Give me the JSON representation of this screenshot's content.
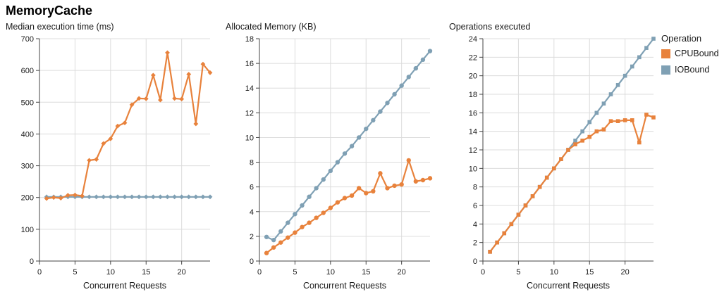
{
  "page": {
    "title": "MemoryCache"
  },
  "legend": {
    "title": "Operation",
    "items": [
      {
        "label": "CPUBound",
        "color": "#E8823C"
      },
      {
        "label": "IOBound",
        "color": "#7FA0B4"
      }
    ]
  },
  "style": {
    "grid_color": "#dcdcdc",
    "axis_color": "#444444",
    "text_color": "#1a1a1a",
    "series_colors": {
      "CPUBound": "#E8823C",
      "IOBound": "#7FA0B4"
    }
  },
  "chart_data": [
    {
      "type": "line",
      "title": "Median execution time (ms)",
      "xlabel": "Concurrent Requests",
      "ylabel": "",
      "marker": "diamond",
      "grid": true,
      "legend_position": "right",
      "xlim": [
        0,
        24
      ],
      "ylim": [
        0,
        700
      ],
      "xticks": [
        0,
        5,
        10,
        15,
        20
      ],
      "yticks": [
        0,
        100,
        200,
        300,
        400,
        500,
        600,
        700
      ],
      "x": [
        1,
        2,
        3,
        4,
        5,
        6,
        7,
        8,
        9,
        10,
        11,
        12,
        13,
        14,
        15,
        16,
        17,
        18,
        19,
        20,
        21,
        22,
        23,
        24
      ],
      "series": [
        {
          "name": "CPUBound",
          "values": [
            197,
            200,
            198,
            207,
            208,
            205,
            317,
            320,
            370,
            385,
            425,
            435,
            492,
            512,
            511,
            585,
            507,
            656,
            512,
            510,
            588,
            432,
            620,
            593
          ]
        },
        {
          "name": "IOBound",
          "values": [
            202,
            202,
            202,
            202,
            202,
            202,
            202,
            202,
            202,
            202,
            202,
            202,
            202,
            202,
            202,
            202,
            202,
            202,
            202,
            202,
            202,
            202,
            202,
            202
          ]
        }
      ]
    },
    {
      "type": "line",
      "title": "Allocated Memory (KB)",
      "xlabel": "Concurrent Requests",
      "ylabel": "",
      "marker": "circle",
      "grid": true,
      "legend_position": "right",
      "xlim": [
        0,
        24
      ],
      "ylim": [
        0,
        18
      ],
      "xticks": [
        0,
        5,
        10,
        15,
        20
      ],
      "yticks": [
        0,
        2,
        4,
        6,
        8,
        10,
        12,
        14,
        16,
        18
      ],
      "x": [
        1,
        2,
        3,
        4,
        5,
        6,
        7,
        8,
        9,
        10,
        11,
        12,
        13,
        14,
        15,
        16,
        17,
        18,
        19,
        20,
        21,
        22,
        23,
        24
      ],
      "series": [
        {
          "name": "CPUBound",
          "values": [
            0.65,
            1.1,
            1.5,
            1.9,
            2.3,
            2.75,
            3.1,
            3.5,
            3.9,
            4.3,
            4.75,
            5.1,
            5.3,
            5.9,
            5.5,
            5.65,
            7.1,
            5.9,
            6.1,
            6.2,
            8.15,
            6.45,
            6.55,
            6.7
          ]
        },
        {
          "name": "IOBound",
          "values": [
            1.95,
            1.7,
            2.4,
            3.1,
            3.8,
            4.5,
            5.2,
            5.9,
            6.6,
            7.3,
            8.0,
            8.7,
            9.3,
            10.0,
            10.7,
            11.4,
            12.1,
            12.8,
            13.5,
            14.2,
            14.9,
            15.6,
            16.3,
            17.0
          ]
        }
      ]
    },
    {
      "type": "line",
      "title": "Operations executed",
      "xlabel": "Concurrent Requests",
      "ylabel": "",
      "marker": "square",
      "grid": true,
      "legend_position": "right",
      "xlim": [
        0,
        24
      ],
      "ylim": [
        0,
        24
      ],
      "xticks": [
        0,
        5,
        10,
        15,
        20
      ],
      "yticks": [
        0,
        2,
        4,
        6,
        8,
        10,
        12,
        14,
        16,
        18,
        20,
        22,
        24
      ],
      "x": [
        1,
        2,
        3,
        4,
        5,
        6,
        7,
        8,
        9,
        10,
        11,
        12,
        13,
        14,
        15,
        16,
        17,
        18,
        19,
        20,
        21,
        22,
        23,
        24
      ],
      "series": [
        {
          "name": "CPUBound",
          "values": [
            1,
            2,
            3,
            4,
            5,
            6,
            7,
            8,
            9,
            10,
            11,
            12,
            12.6,
            13,
            13.4,
            14,
            14.2,
            15.1,
            15.1,
            15.2,
            15.2,
            12.8,
            15.8,
            15.5
          ]
        },
        {
          "name": "IOBound",
          "values": [
            1,
            2,
            3,
            4,
            5,
            6,
            7,
            8,
            9,
            10,
            11,
            12,
            13,
            14,
            15,
            16,
            17,
            18,
            19,
            20,
            21,
            22,
            23,
            24
          ]
        }
      ]
    }
  ]
}
